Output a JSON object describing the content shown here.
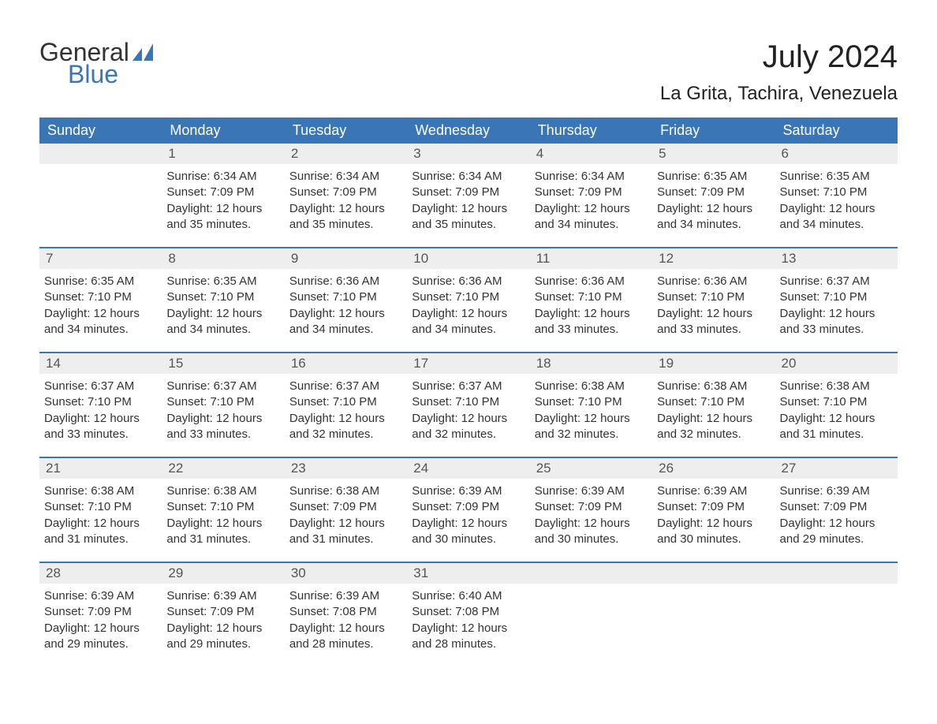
{
  "logo": {
    "word1": "General",
    "word2": "Blue",
    "icon_color": "#3a75b5",
    "text_color": "#333333"
  },
  "title": "July 2024",
  "location": "La Grita, Tachira, Venezuela",
  "colors": {
    "header_bg": "#3a75b5",
    "header_text": "#ffffff",
    "row_divider": "#3a75b5",
    "daynum_bg": "#eeeeee",
    "body_text": "#333333",
    "page_bg": "#ffffff"
  },
  "day_names": [
    "Sunday",
    "Monday",
    "Tuesday",
    "Wednesday",
    "Thursday",
    "Friday",
    "Saturday"
  ],
  "weeks": [
    [
      {
        "n": "",
        "sunrise": "",
        "sunset": "",
        "dl1": "",
        "dl2": ""
      },
      {
        "n": "1",
        "sunrise": "Sunrise: 6:34 AM",
        "sunset": "Sunset: 7:09 PM",
        "dl1": "Daylight: 12 hours",
        "dl2": "and 35 minutes."
      },
      {
        "n": "2",
        "sunrise": "Sunrise: 6:34 AM",
        "sunset": "Sunset: 7:09 PM",
        "dl1": "Daylight: 12 hours",
        "dl2": "and 35 minutes."
      },
      {
        "n": "3",
        "sunrise": "Sunrise: 6:34 AM",
        "sunset": "Sunset: 7:09 PM",
        "dl1": "Daylight: 12 hours",
        "dl2": "and 35 minutes."
      },
      {
        "n": "4",
        "sunrise": "Sunrise: 6:34 AM",
        "sunset": "Sunset: 7:09 PM",
        "dl1": "Daylight: 12 hours",
        "dl2": "and 34 minutes."
      },
      {
        "n": "5",
        "sunrise": "Sunrise: 6:35 AM",
        "sunset": "Sunset: 7:09 PM",
        "dl1": "Daylight: 12 hours",
        "dl2": "and 34 minutes."
      },
      {
        "n": "6",
        "sunrise": "Sunrise: 6:35 AM",
        "sunset": "Sunset: 7:10 PM",
        "dl1": "Daylight: 12 hours",
        "dl2": "and 34 minutes."
      }
    ],
    [
      {
        "n": "7",
        "sunrise": "Sunrise: 6:35 AM",
        "sunset": "Sunset: 7:10 PM",
        "dl1": "Daylight: 12 hours",
        "dl2": "and 34 minutes."
      },
      {
        "n": "8",
        "sunrise": "Sunrise: 6:35 AM",
        "sunset": "Sunset: 7:10 PM",
        "dl1": "Daylight: 12 hours",
        "dl2": "and 34 minutes."
      },
      {
        "n": "9",
        "sunrise": "Sunrise: 6:36 AM",
        "sunset": "Sunset: 7:10 PM",
        "dl1": "Daylight: 12 hours",
        "dl2": "and 34 minutes."
      },
      {
        "n": "10",
        "sunrise": "Sunrise: 6:36 AM",
        "sunset": "Sunset: 7:10 PM",
        "dl1": "Daylight: 12 hours",
        "dl2": "and 34 minutes."
      },
      {
        "n": "11",
        "sunrise": "Sunrise: 6:36 AM",
        "sunset": "Sunset: 7:10 PM",
        "dl1": "Daylight: 12 hours",
        "dl2": "and 33 minutes."
      },
      {
        "n": "12",
        "sunrise": "Sunrise: 6:36 AM",
        "sunset": "Sunset: 7:10 PM",
        "dl1": "Daylight: 12 hours",
        "dl2": "and 33 minutes."
      },
      {
        "n": "13",
        "sunrise": "Sunrise: 6:37 AM",
        "sunset": "Sunset: 7:10 PM",
        "dl1": "Daylight: 12 hours",
        "dl2": "and 33 minutes."
      }
    ],
    [
      {
        "n": "14",
        "sunrise": "Sunrise: 6:37 AM",
        "sunset": "Sunset: 7:10 PM",
        "dl1": "Daylight: 12 hours",
        "dl2": "and 33 minutes."
      },
      {
        "n": "15",
        "sunrise": "Sunrise: 6:37 AM",
        "sunset": "Sunset: 7:10 PM",
        "dl1": "Daylight: 12 hours",
        "dl2": "and 33 minutes."
      },
      {
        "n": "16",
        "sunrise": "Sunrise: 6:37 AM",
        "sunset": "Sunset: 7:10 PM",
        "dl1": "Daylight: 12 hours",
        "dl2": "and 32 minutes."
      },
      {
        "n": "17",
        "sunrise": "Sunrise: 6:37 AM",
        "sunset": "Sunset: 7:10 PM",
        "dl1": "Daylight: 12 hours",
        "dl2": "and 32 minutes."
      },
      {
        "n": "18",
        "sunrise": "Sunrise: 6:38 AM",
        "sunset": "Sunset: 7:10 PM",
        "dl1": "Daylight: 12 hours",
        "dl2": "and 32 minutes."
      },
      {
        "n": "19",
        "sunrise": "Sunrise: 6:38 AM",
        "sunset": "Sunset: 7:10 PM",
        "dl1": "Daylight: 12 hours",
        "dl2": "and 32 minutes."
      },
      {
        "n": "20",
        "sunrise": "Sunrise: 6:38 AM",
        "sunset": "Sunset: 7:10 PM",
        "dl1": "Daylight: 12 hours",
        "dl2": "and 31 minutes."
      }
    ],
    [
      {
        "n": "21",
        "sunrise": "Sunrise: 6:38 AM",
        "sunset": "Sunset: 7:10 PM",
        "dl1": "Daylight: 12 hours",
        "dl2": "and 31 minutes."
      },
      {
        "n": "22",
        "sunrise": "Sunrise: 6:38 AM",
        "sunset": "Sunset: 7:10 PM",
        "dl1": "Daylight: 12 hours",
        "dl2": "and 31 minutes."
      },
      {
        "n": "23",
        "sunrise": "Sunrise: 6:38 AM",
        "sunset": "Sunset: 7:09 PM",
        "dl1": "Daylight: 12 hours",
        "dl2": "and 31 minutes."
      },
      {
        "n": "24",
        "sunrise": "Sunrise: 6:39 AM",
        "sunset": "Sunset: 7:09 PM",
        "dl1": "Daylight: 12 hours",
        "dl2": "and 30 minutes."
      },
      {
        "n": "25",
        "sunrise": "Sunrise: 6:39 AM",
        "sunset": "Sunset: 7:09 PM",
        "dl1": "Daylight: 12 hours",
        "dl2": "and 30 minutes."
      },
      {
        "n": "26",
        "sunrise": "Sunrise: 6:39 AM",
        "sunset": "Sunset: 7:09 PM",
        "dl1": "Daylight: 12 hours",
        "dl2": "and 30 minutes."
      },
      {
        "n": "27",
        "sunrise": "Sunrise: 6:39 AM",
        "sunset": "Sunset: 7:09 PM",
        "dl1": "Daylight: 12 hours",
        "dl2": "and 29 minutes."
      }
    ],
    [
      {
        "n": "28",
        "sunrise": "Sunrise: 6:39 AM",
        "sunset": "Sunset: 7:09 PM",
        "dl1": "Daylight: 12 hours",
        "dl2": "and 29 minutes."
      },
      {
        "n": "29",
        "sunrise": "Sunrise: 6:39 AM",
        "sunset": "Sunset: 7:09 PM",
        "dl1": "Daylight: 12 hours",
        "dl2": "and 29 minutes."
      },
      {
        "n": "30",
        "sunrise": "Sunrise: 6:39 AM",
        "sunset": "Sunset: 7:08 PM",
        "dl1": "Daylight: 12 hours",
        "dl2": "and 28 minutes."
      },
      {
        "n": "31",
        "sunrise": "Sunrise: 6:40 AM",
        "sunset": "Sunset: 7:08 PM",
        "dl1": "Daylight: 12 hours",
        "dl2": "and 28 minutes."
      },
      {
        "n": "",
        "sunrise": "",
        "sunset": "",
        "dl1": "",
        "dl2": ""
      },
      {
        "n": "",
        "sunrise": "",
        "sunset": "",
        "dl1": "",
        "dl2": ""
      },
      {
        "n": "",
        "sunrise": "",
        "sunset": "",
        "dl1": "",
        "dl2": ""
      }
    ]
  ]
}
